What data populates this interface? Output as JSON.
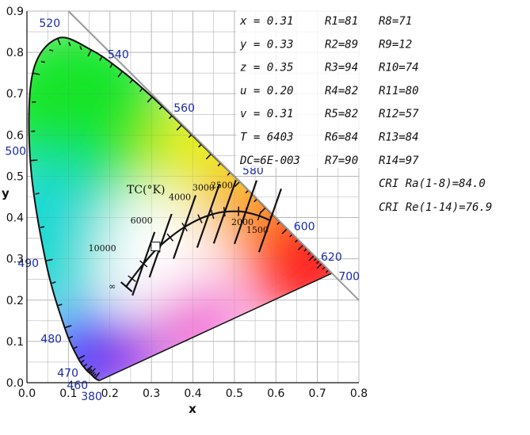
{
  "chart_data": {
    "type": "scatter",
    "title": "",
    "xlabel": "x",
    "ylabel": "y",
    "xlim": [
      0.0,
      0.8
    ],
    "ylim": [
      0.0,
      0.9
    ],
    "grid": true,
    "x_ticks": [
      "0.0",
      "0.1",
      "0.2",
      "0.3",
      "0.4",
      "0.5",
      "0.6",
      "0.7",
      "0.8"
    ],
    "y_ticks": [
      "0.0",
      "0.1",
      "0.2",
      "0.3",
      "0.4",
      "0.5",
      "0.6",
      "0.7",
      "0.8",
      "0.9"
    ],
    "spectral_locus": [
      [
        0.174,
        0.005
      ],
      [
        0.164,
        0.011
      ],
      [
        0.153,
        0.022
      ],
      [
        0.144,
        0.03
      ],
      [
        0.124,
        0.058
      ],
      [
        0.091,
        0.133
      ],
      [
        0.045,
        0.295
      ],
      [
        0.008,
        0.538
      ],
      [
        0.014,
        0.75
      ],
      [
        0.074,
        0.834
      ],
      [
        0.155,
        0.806
      ],
      [
        0.23,
        0.754
      ],
      [
        0.302,
        0.692
      ],
      [
        0.373,
        0.624
      ],
      [
        0.444,
        0.554
      ],
      [
        0.513,
        0.487
      ],
      [
        0.575,
        0.424
      ],
      [
        0.627,
        0.373
      ],
      [
        0.666,
        0.334
      ],
      [
        0.692,
        0.308
      ],
      [
        0.711,
        0.289
      ],
      [
        0.735,
        0.265
      ]
    ],
    "wavelength_labels": [
      {
        "label": "380",
        "x": 0.174,
        "y": 0.005
      },
      {
        "label": "460",
        "x": 0.144,
        "y": 0.03
      },
      {
        "label": "470",
        "x": 0.124,
        "y": 0.058
      },
      {
        "label": "480",
        "x": 0.091,
        "y": 0.133
      },
      {
        "label": "490",
        "x": 0.045,
        "y": 0.295
      },
      {
        "label": "500",
        "x": 0.008,
        "y": 0.538
      },
      {
        "label": "520",
        "x": 0.074,
        "y": 0.834
      },
      {
        "label": "540",
        "x": 0.23,
        "y": 0.754
      },
      {
        "label": "560",
        "x": 0.373,
        "y": 0.624
      },
      {
        "label": "580",
        "x": 0.513,
        "y": 0.487
      },
      {
        "label": "600",
        "x": 0.627,
        "y": 0.373
      },
      {
        "label": "620",
        "x": 0.692,
        "y": 0.308
      },
      {
        "label": "700",
        "x": 0.735,
        "y": 0.265
      }
    ],
    "planckian_locus": [
      [
        0.24,
        0.234
      ],
      [
        0.253,
        0.252
      ],
      [
        0.281,
        0.288
      ],
      [
        0.313,
        0.324
      ],
      [
        0.345,
        0.352
      ],
      [
        0.38,
        0.377
      ],
      [
        0.417,
        0.397
      ],
      [
        0.447,
        0.408
      ],
      [
        0.476,
        0.414
      ],
      [
        0.51,
        0.415
      ],
      [
        0.527,
        0.413
      ],
      [
        0.56,
        0.404
      ],
      [
        0.586,
        0.393
      ]
    ],
    "cct_labels": [
      {
        "label": "∞",
        "x": 0.24,
        "y": 0.234
      },
      {
        "label": "10000",
        "x": 0.281,
        "y": 0.288
      },
      {
        "label": "6000",
        "x": 0.322,
        "y": 0.332
      },
      {
        "label": "4000",
        "x": 0.38,
        "y": 0.377
      },
      {
        "label": "3000",
        "x": 0.437,
        "y": 0.404
      },
      {
        "label": "2500",
        "x": 0.477,
        "y": 0.414
      },
      {
        "label": "2000",
        "x": 0.527,
        "y": 0.413
      },
      {
        "label": "1500",
        "x": 0.586,
        "y": 0.393
      }
    ],
    "planckian_axis_label": "TC(°K)",
    "measured_point": {
      "x": 0.31,
      "y": 0.33
    },
    "color_data": [
      "x = 0.31",
      "y = 0.33",
      "z = 0.35",
      "u = 0.20",
      "v = 0.31",
      "T = 6403",
      "DC=6E-003"
    ],
    "cri_r1_r7": [
      "R1=81",
      "R2=89",
      "R3=94",
      "R4=82",
      "R5=82",
      "R6=84",
      "R7=90"
    ],
    "cri_r8_r14": [
      "R8=71",
      "R9=12",
      "R10=74",
      "R11=80",
      "R12=57",
      "R13=84",
      "R14=97"
    ],
    "cri_summary": [
      "CRI Ra(1-8)=84.0",
      "CRI Re(1-14)=76.9"
    ]
  }
}
